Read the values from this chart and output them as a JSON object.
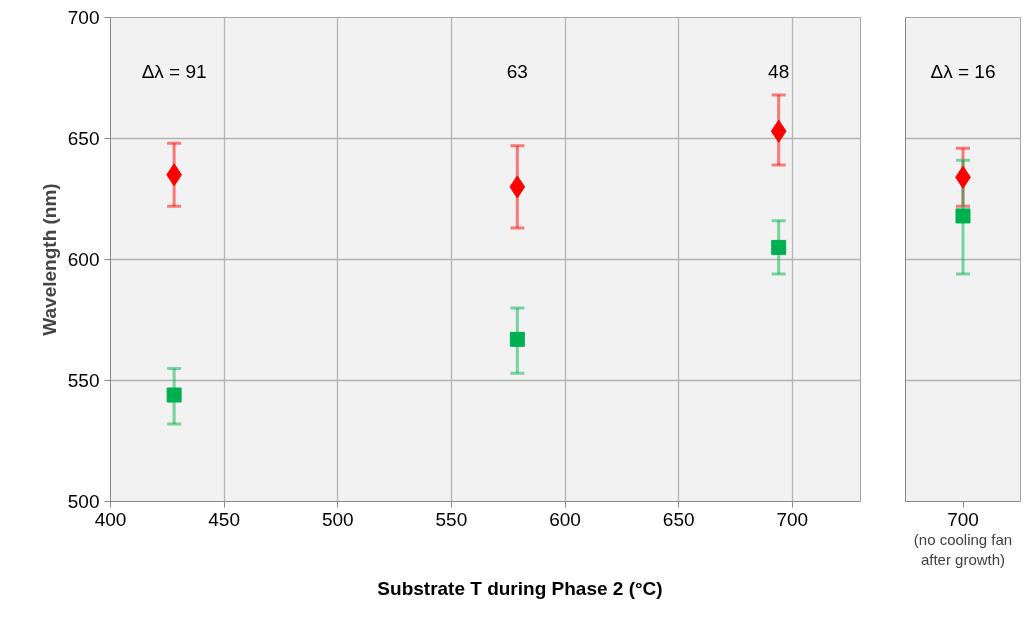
{
  "chart_data": [
    {
      "type": "scatter",
      "xlabel": "Substrate T during Phase 2 (°C)",
      "ylabel": "Wavelength (nm)",
      "xlim": [
        400,
        730
      ],
      "xticks": [
        400,
        450,
        500,
        550,
        600,
        650,
        700
      ],
      "ylim": [
        500,
        700
      ],
      "yticks": [
        500,
        550,
        600,
        650,
        700
      ],
      "grid": true,
      "series": [
        {
          "color": "#ff0000",
          "marker": "diamond",
          "x": [
            428,
            579,
            694
          ],
          "values": [
            635,
            630,
            653
          ],
          "errors": [
            [
              622,
              648
            ],
            [
              613,
              647
            ],
            [
              639,
              668
            ]
          ]
        },
        {
          "color": "#00b050",
          "marker": "square",
          "x": [
            428,
            579,
            694
          ],
          "values": [
            544,
            567,
            605
          ],
          "errors": [
            [
              532,
              555
            ],
            [
              553,
              580
            ],
            [
              594,
              616
            ]
          ]
        }
      ],
      "annotations": [
        "Δλ = 91",
        "63",
        "48"
      ]
    },
    {
      "type": "scatter",
      "categories": [
        "700"
      ],
      "ylim": [
        500,
        700
      ],
      "yticks": [
        500,
        550,
        600,
        650,
        700
      ],
      "grid": true,
      "tick_labels": "x",
      "series": [
        {
          "color": "#ff0000",
          "marker": "diamond",
          "values": [
            634
          ],
          "errors": [
            [
              622,
              646
            ]
          ]
        },
        {
          "color": "#00b050",
          "marker": "square",
          "values": [
            618
          ],
          "errors": [
            [
              594,
              641
            ]
          ]
        }
      ],
      "annotations": [
        "Δλ = 16",
        "(no cooling fan after growth)"
      ]
    }
  ]
}
